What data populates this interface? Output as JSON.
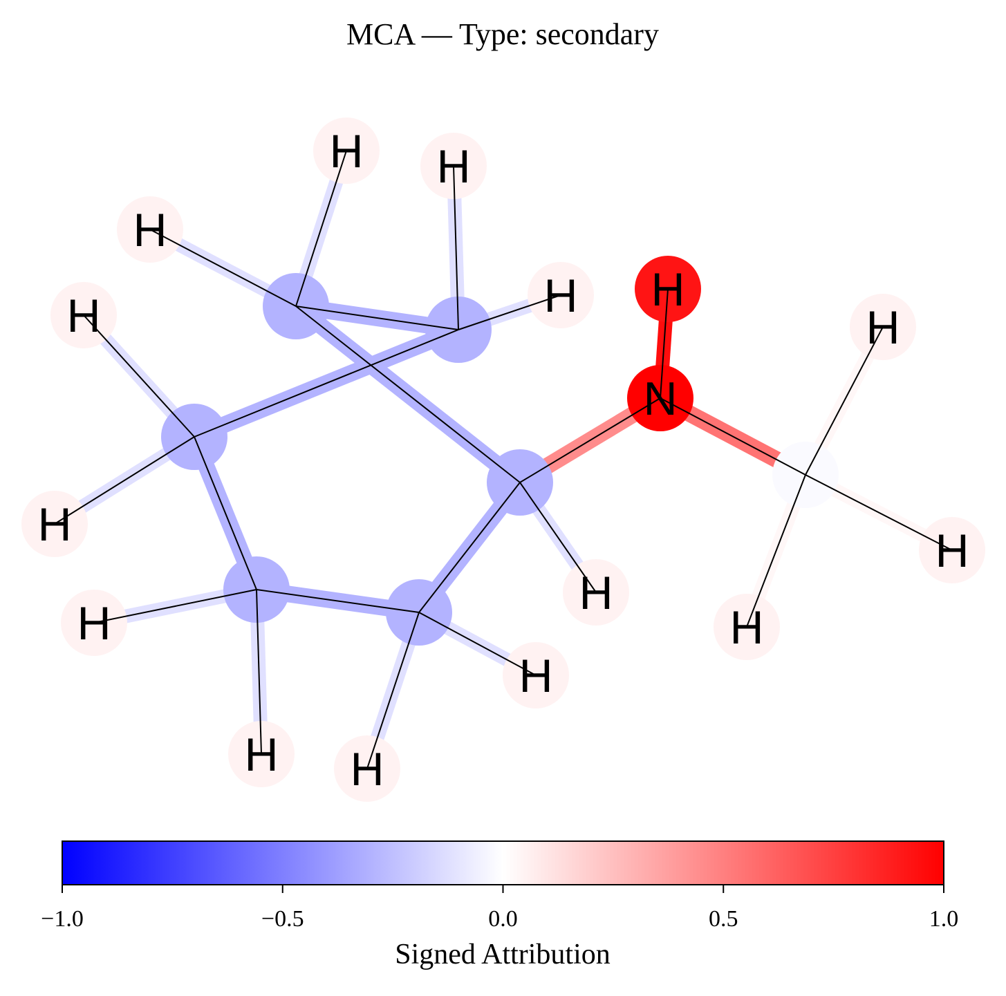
{
  "title": "MCA — Type: secondary",
  "colorbar": {
    "label": "Signed Attribution",
    "min": -1.0,
    "max": 1.0,
    "ticks": [
      {
        "value": -1.0,
        "label": "−1.0"
      },
      {
        "value": -0.5,
        "label": "−0.5"
      },
      {
        "value": 0.0,
        "label": "0.0"
      },
      {
        "value": 0.5,
        "label": "0.5"
      },
      {
        "value": 1.0,
        "label": "1.0"
      }
    ],
    "colors": {
      "negative": "#0000ff",
      "neutral": "#ffffff",
      "positive": "#ff0000"
    }
  },
  "molecule": {
    "atoms": [
      {
        "id": "C1",
        "element": "C",
        "label": "",
        "attribution": -0.3
      },
      {
        "id": "C2",
        "element": "C",
        "label": "",
        "attribution": -0.3
      },
      {
        "id": "C3",
        "element": "C",
        "label": "",
        "attribution": -0.3
      },
      {
        "id": "C4",
        "element": "C",
        "label": "",
        "attribution": -0.3
      },
      {
        "id": "C5",
        "element": "C",
        "label": "",
        "attribution": -0.3
      },
      {
        "id": "C6",
        "element": "C",
        "label": "",
        "attribution": -0.3
      },
      {
        "id": "N",
        "element": "N",
        "label": "N",
        "attribution": 1.0
      },
      {
        "id": "C7",
        "element": "C",
        "label": "",
        "attribution": -0.02
      },
      {
        "id": "HN",
        "element": "H",
        "label": "H",
        "attribution": 0.92
      },
      {
        "id": "H1",
        "element": "H",
        "label": "H",
        "attribution": 0.05
      },
      {
        "id": "H2a",
        "element": "H",
        "label": "H",
        "attribution": 0.05
      },
      {
        "id": "H2b",
        "element": "H",
        "label": "H",
        "attribution": 0.05
      },
      {
        "id": "H3a",
        "element": "H",
        "label": "H",
        "attribution": 0.05
      },
      {
        "id": "H3b",
        "element": "H",
        "label": "H",
        "attribution": 0.05
      },
      {
        "id": "H4a",
        "element": "H",
        "label": "H",
        "attribution": 0.05
      },
      {
        "id": "H4b",
        "element": "H",
        "label": "H",
        "attribution": 0.05
      },
      {
        "id": "H5a",
        "element": "H",
        "label": "H",
        "attribution": 0.05
      },
      {
        "id": "H5b",
        "element": "H",
        "label": "H",
        "attribution": 0.05
      },
      {
        "id": "H6a",
        "element": "H",
        "label": "H",
        "attribution": 0.05
      },
      {
        "id": "H6b",
        "element": "H",
        "label": "H",
        "attribution": 0.05
      },
      {
        "id": "H7a",
        "element": "H",
        "label": "H",
        "attribution": 0.05
      },
      {
        "id": "H7b",
        "element": "H",
        "label": "H",
        "attribution": 0.05
      },
      {
        "id": "H7c",
        "element": "H",
        "label": "H",
        "attribution": 0.05
      }
    ],
    "bonds": [
      {
        "a": "C1",
        "b": "C2",
        "attribution": -0.3
      },
      {
        "a": "C2",
        "b": "C3",
        "attribution": -0.3
      },
      {
        "a": "C3",
        "b": "C4",
        "attribution": -0.3
      },
      {
        "a": "C4",
        "b": "C5",
        "attribution": -0.3
      },
      {
        "a": "C5",
        "b": "C6",
        "attribution": -0.3
      },
      {
        "a": "C6",
        "b": "C1",
        "attribution": -0.3
      },
      {
        "a": "C1",
        "b": "N",
        "attribution": 0.45
      },
      {
        "a": "N",
        "b": "C7",
        "attribution": 0.55
      },
      {
        "a": "N",
        "b": "HN",
        "attribution": 0.95
      },
      {
        "a": "C1",
        "b": "H1",
        "attribution": -0.12
      },
      {
        "a": "C2",
        "b": "H2a",
        "attribution": -0.12
      },
      {
        "a": "C2",
        "b": "H2b",
        "attribution": -0.12
      },
      {
        "a": "C3",
        "b": "H3a",
        "attribution": -0.12
      },
      {
        "a": "C3",
        "b": "H3b",
        "attribution": -0.12
      },
      {
        "a": "C4",
        "b": "H4a",
        "attribution": -0.12
      },
      {
        "a": "C4",
        "b": "H4b",
        "attribution": -0.12
      },
      {
        "a": "C5",
        "b": "H5a",
        "attribution": -0.12
      },
      {
        "a": "C5",
        "b": "H5b",
        "attribution": -0.12
      },
      {
        "a": "C6",
        "b": "H6a",
        "attribution": -0.12
      },
      {
        "a": "C6",
        "b": "H6b",
        "attribution": -0.12
      },
      {
        "a": "C7",
        "b": "H7a",
        "attribution": 0.03
      },
      {
        "a": "C7",
        "b": "H7b",
        "attribution": 0.03
      },
      {
        "a": "C7",
        "b": "H7c",
        "attribution": 0.03
      }
    ]
  }
}
